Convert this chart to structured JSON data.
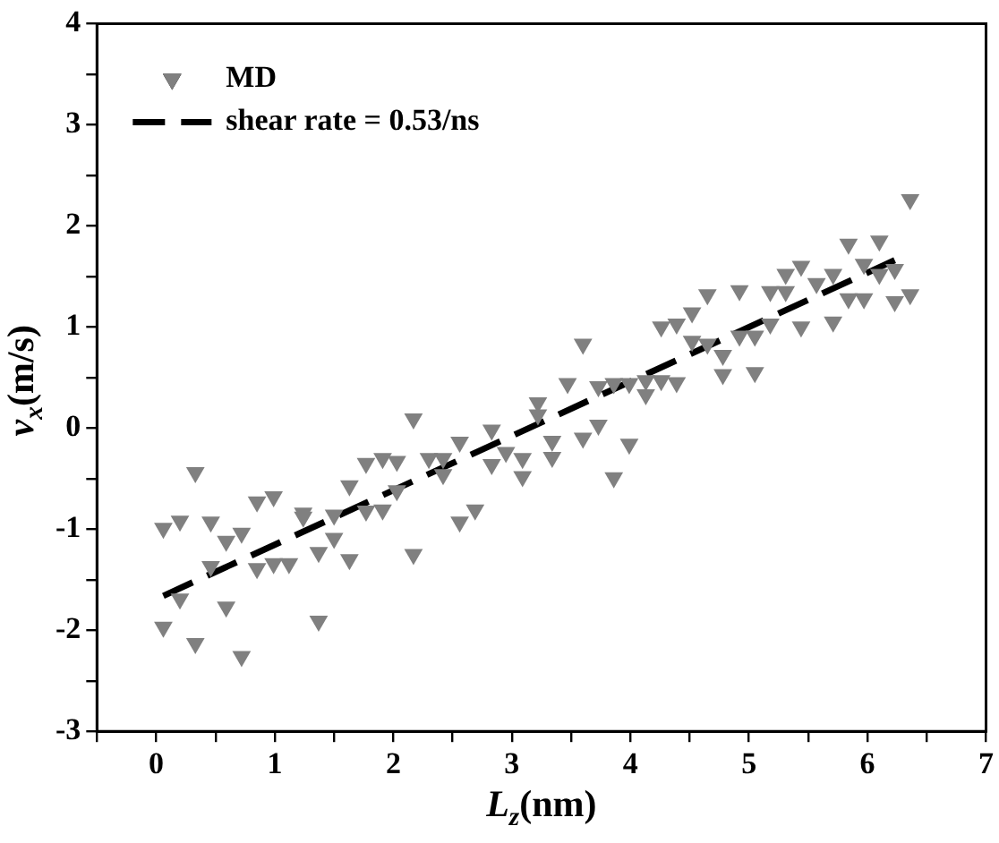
{
  "chart_data": {
    "type": "scatter",
    "xlabel": "L$_{z}$(nm)",
    "ylabel": "v$_{x}$(m/s)",
    "xlim": [
      -0.5,
      7
    ],
    "ylim": [
      -3,
      4
    ],
    "xticks": [
      {
        "value": -0.5,
        "label": null
      },
      0,
      {
        "value": 0.5,
        "label": null
      },
      1,
      {
        "value": 1.5,
        "label": null
      },
      2,
      {
        "value": 2.5,
        "label": null
      },
      3,
      {
        "value": 3.5,
        "label": null
      },
      4,
      {
        "value": 4.5,
        "label": null
      },
      5,
      {
        "value": 5.5,
        "label": null
      },
      6,
      {
        "value": 6.5,
        "label": null
      },
      7
    ],
    "yticks": [
      -3,
      {
        "value": -2.5,
        "label": null
      },
      -2,
      {
        "value": -1.5,
        "label": null
      },
      -1,
      {
        "value": -0.5,
        "label": null
      },
      0,
      {
        "value": 0.5,
        "label": null
      },
      1,
      {
        "value": 1.5,
        "label": null
      },
      2,
      {
        "value": 2.5,
        "label": null
      },
      3,
      {
        "value": 3.5,
        "label": null
      },
      4
    ],
    "grid": false,
    "legend": "top left",
    "series": [
      {
        "name": "MD",
        "type": "scatter",
        "marker": "triangle",
        "color": "#808080",
        "x": [
          0.06,
          0.06,
          0.2,
          0.2,
          0.33,
          0.33,
          0.46,
          0.46,
          0.59,
          0.59,
          0.72,
          0.72,
          0.85,
          0.85,
          0.99,
          0.99,
          1.12,
          1.24,
          1.24,
          1.37,
          1.37,
          1.5,
          1.5,
          1.63,
          1.63,
          1.77,
          1.77,
          1.91,
          1.91,
          2.03,
          2.03,
          2.17,
          2.17,
          2.3,
          2.42,
          2.42,
          2.56,
          2.56,
          2.69,
          2.83,
          2.83,
          2.95,
          3.09,
          3.09,
          3.22,
          3.22,
          3.34,
          3.34,
          3.47,
          3.6,
          3.6,
          3.73,
          3.73,
          3.86,
          3.86,
          3.99,
          3.99,
          4.13,
          4.13,
          4.26,
          4.26,
          4.39,
          4.39,
          4.52,
          4.52,
          4.65,
          4.65,
          4.78,
          4.78,
          4.92,
          4.92,
          5.05,
          5.05,
          5.18,
          5.18,
          5.31,
          5.31,
          5.44,
          5.44,
          5.57,
          5.71,
          5.71,
          5.84,
          5.84,
          5.97,
          5.97,
          6.1,
          6.1,
          6.23,
          6.23,
          6.36,
          6.36
        ],
        "values": [
          -0.99,
          -1.97,
          -0.92,
          -1.69,
          -0.44,
          -2.13,
          -0.93,
          -1.37,
          -1.12,
          -1.77,
          -1.04,
          -2.26,
          -0.73,
          -1.39,
          -0.68,
          -1.34,
          -1.34,
          -0.84,
          -0.88,
          -1.23,
          -1.91,
          -0.86,
          -1.09,
          -0.57,
          -1.3,
          -0.35,
          -0.82,
          -0.3,
          -0.81,
          -0.33,
          -0.62,
          0.09,
          -1.25,
          -0.3,
          -0.3,
          -0.46,
          -0.14,
          -0.93,
          -0.81,
          -0.02,
          -0.36,
          -0.24,
          -0.3,
          -0.48,
          0.25,
          0.13,
          -0.13,
          -0.29,
          0.44,
          0.83,
          -0.1,
          0.41,
          0.03,
          0.44,
          -0.49,
          0.44,
          -0.16,
          0.33,
          0.47,
          1.0,
          0.47,
          1.03,
          0.45,
          1.14,
          0.86,
          1.32,
          0.83,
          0.72,
          0.53,
          1.36,
          0.91,
          0.91,
          0.55,
          1.35,
          1.03,
          1.52,
          1.35,
          1.6,
          1.0,
          1.43,
          1.52,
          1.05,
          1.82,
          1.28,
          1.62,
          1.28,
          1.85,
          1.52,
          1.25,
          1.57,
          2.26,
          1.32
        ]
      },
      {
        "name": "shear rate = 0.53/ns",
        "type": "line",
        "marker": "none",
        "line_style": "dashed",
        "color": "#000000",
        "x": [
          0.06,
          6.23
        ],
        "values": [
          -1.66,
          1.66
        ]
      }
    ]
  }
}
